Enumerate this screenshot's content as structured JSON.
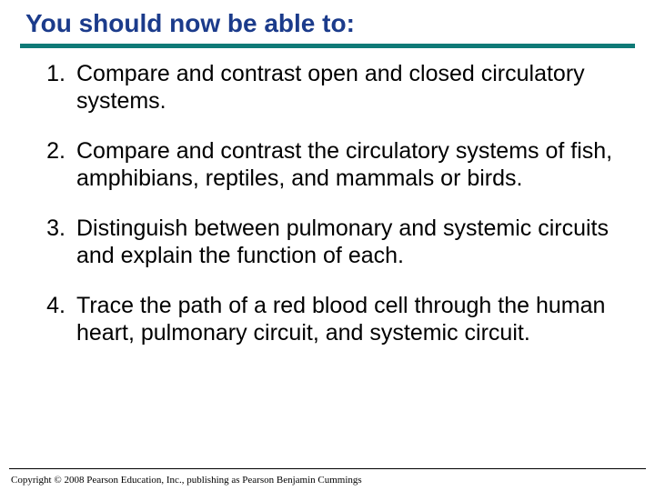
{
  "title": "You should now be able to:",
  "title_color": "#1b3b8b",
  "title_fontsize": 28,
  "divider_color": "#0f7a77",
  "divider_thickness": 5,
  "background_color": "#ffffff",
  "body_fontsize": 25,
  "body_color": "#000000",
  "items": [
    {
      "n": "1.",
      "text": "Compare and contrast open and closed circulatory systems."
    },
    {
      "n": "2.",
      "text": "Compare and contrast the circulatory systems of fish, amphibians, reptiles, and mammals or birds."
    },
    {
      "n": "3.",
      "text": "Distinguish between pulmonary and systemic circuits and explain the function of each."
    },
    {
      "n": "4.",
      "text": "Trace the path of a red blood cell through the human heart, pulmonary circuit, and systemic circuit."
    }
  ],
  "footer_divider_color": "#000000",
  "copyright": "Copyright © 2008 Pearson Education, Inc., publishing as Pearson Benjamin Cummings"
}
